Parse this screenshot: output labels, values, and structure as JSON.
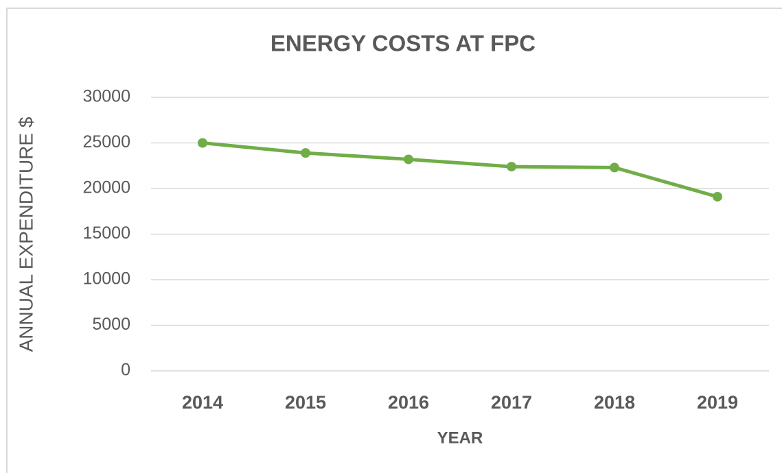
{
  "chart_data": {
    "type": "line",
    "title": "ENERGY COSTS AT FPC",
    "x_label": "YEAR",
    "y_label": "ANNUAL EXPENDITURE $",
    "categories": [
      "2014",
      "2015",
      "2016",
      "2017",
      "2018",
      "2019"
    ],
    "series": [
      {
        "name": "Annual expenditure",
        "color": "#70ad47",
        "values": [
          25000,
          23900,
          23200,
          22400,
          22300,
          19100
        ]
      }
    ],
    "ylim": [
      0,
      30000
    ],
    "yticks": [
      0,
      5000,
      10000,
      15000,
      20000,
      25000,
      30000
    ],
    "grid": true,
    "legend": false
  }
}
